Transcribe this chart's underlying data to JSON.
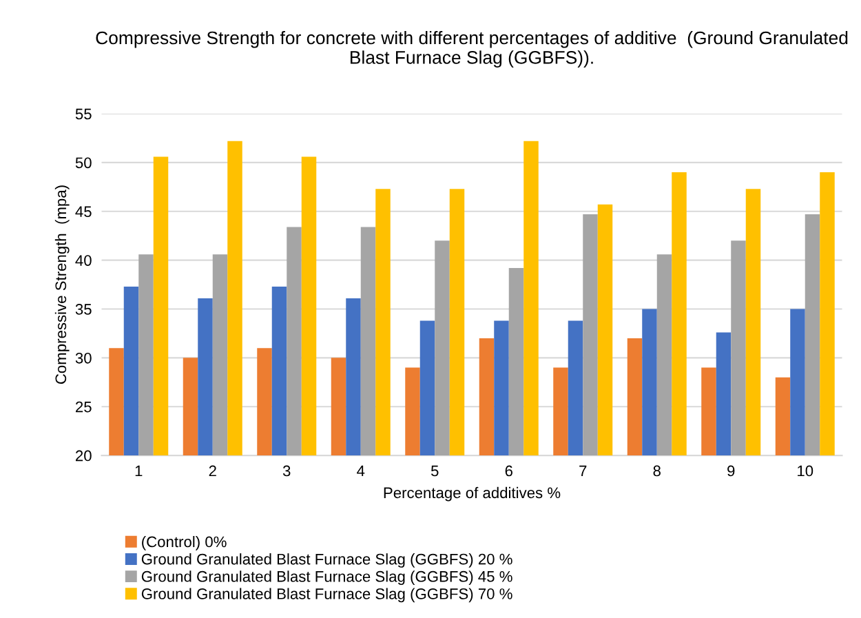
{
  "chart_data": {
    "type": "bar",
    "title": "Compressive Strength for concrete with different percentages of additive  (Ground Granulated Blast Furnace Slag (GGBFS)).",
    "xlabel": "Percentage of additives %",
    "ylabel": "Compressive Strength  (mpa)",
    "categories": [
      "1",
      "2",
      "3",
      "4",
      "5",
      "6",
      "7",
      "8",
      "9",
      "10"
    ],
    "series": [
      {
        "name": "(Control) 0%",
        "color": "#ed7d31",
        "values": [
          31,
          30,
          31,
          30,
          29,
          32,
          29,
          32,
          29,
          28
        ]
      },
      {
        "name": "Ground Granulated Blast Furnace Slag (GGBFS) 20 %",
        "color": "#4472c4",
        "values": [
          37.3,
          36.1,
          37.3,
          36.1,
          33.8,
          33.8,
          33.8,
          35,
          32.6,
          35
        ]
      },
      {
        "name": "Ground Granulated Blast Furnace Slag (GGBFS) 45 %",
        "color": "#a5a5a5",
        "values": [
          40.6,
          40.6,
          43.4,
          43.4,
          42.0,
          39.2,
          44.7,
          40.6,
          42.0,
          44.7
        ]
      },
      {
        "name": "Ground Granulated Blast Furnace Slag (GGBFS) 70 %",
        "color": "#ffc000",
        "values": [
          50.6,
          52.2,
          50.6,
          47.3,
          47.3,
          52.2,
          45.7,
          49.0,
          47.3,
          49.0
        ]
      }
    ],
    "ylim": [
      20,
      55
    ],
    "yticks": [
      20,
      25,
      30,
      35,
      40,
      45,
      50,
      55
    ],
    "grid": "y",
    "legend": "bottom"
  }
}
